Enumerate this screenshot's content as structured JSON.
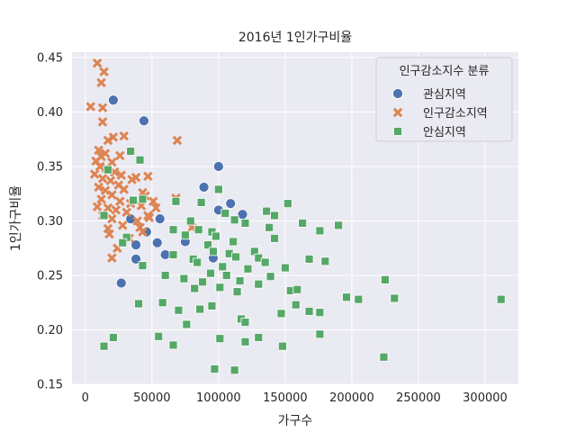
{
  "chart_data": {
    "type": "scatter",
    "title": "2016년 1인가구비율",
    "xlabel": "가구수",
    "ylabel": "1인가구비율",
    "xlim": [
      -10000,
      325000
    ],
    "ylim": [
      0.15,
      0.455
    ],
    "xticks": [
      0,
      50000,
      100000,
      150000,
      200000,
      250000,
      300000
    ],
    "yticks": [
      0.15,
      0.2,
      0.25,
      0.3,
      0.35,
      0.4,
      0.45
    ],
    "grid": true,
    "legend": {
      "title": "인구감소지수 분류",
      "position": "top-right"
    },
    "series": [
      {
        "name": "관심지역",
        "marker": "circle",
        "color": "#4c72b0",
        "points": [
          [
            21000,
            0.411
          ],
          [
            44000,
            0.392
          ],
          [
            100000,
            0.35
          ],
          [
            89000,
            0.331
          ],
          [
            109000,
            0.316
          ],
          [
            100000,
            0.31
          ],
          [
            118000,
            0.306
          ],
          [
            56000,
            0.302
          ],
          [
            34000,
            0.302
          ],
          [
            46000,
            0.29
          ],
          [
            54000,
            0.28
          ],
          [
            38000,
            0.278
          ],
          [
            75000,
            0.281
          ],
          [
            60000,
            0.269
          ],
          [
            38000,
            0.265
          ],
          [
            96000,
            0.266
          ],
          [
            27000,
            0.243
          ]
        ]
      },
      {
        "name": "인구감소지역",
        "marker": "x",
        "color": "#dd8452",
        "points": [
          [
            9000,
            0.445
          ],
          [
            14000,
            0.437
          ],
          [
            12000,
            0.427
          ],
          [
            4000,
            0.405
          ],
          [
            13000,
            0.404
          ],
          [
            13000,
            0.391
          ],
          [
            21000,
            0.377
          ],
          [
            29000,
            0.378
          ],
          [
            17000,
            0.374
          ],
          [
            69000,
            0.374
          ],
          [
            10000,
            0.365
          ],
          [
            15000,
            0.362
          ],
          [
            12000,
            0.359
          ],
          [
            8000,
            0.355
          ],
          [
            20000,
            0.354
          ],
          [
            26000,
            0.36
          ],
          [
            11000,
            0.35
          ],
          [
            16000,
            0.348
          ],
          [
            22000,
            0.345
          ],
          [
            7000,
            0.343
          ],
          [
            13000,
            0.339
          ],
          [
            19000,
            0.337
          ],
          [
            38000,
            0.34
          ],
          [
            47000,
            0.341
          ],
          [
            25000,
            0.333
          ],
          [
            10000,
            0.331
          ],
          [
            15000,
            0.328
          ],
          [
            29000,
            0.329
          ],
          [
            20000,
            0.324
          ],
          [
            43000,
            0.326
          ],
          [
            45000,
            0.323
          ],
          [
            12000,
            0.32
          ],
          [
            26000,
            0.318
          ],
          [
            34000,
            0.316
          ],
          [
            51000,
            0.318
          ],
          [
            68000,
            0.321
          ],
          [
            9000,
            0.313
          ],
          [
            17000,
            0.312
          ],
          [
            23000,
            0.31
          ],
          [
            31000,
            0.308
          ],
          [
            42000,
            0.314
          ],
          [
            53000,
            0.312
          ],
          [
            13000,
            0.305
          ],
          [
            20000,
            0.302
          ],
          [
            39000,
            0.3
          ],
          [
            47000,
            0.305
          ],
          [
            28000,
            0.296
          ],
          [
            17000,
            0.293
          ],
          [
            41000,
            0.294
          ],
          [
            80000,
            0.294
          ],
          [
            18000,
            0.288
          ],
          [
            43000,
            0.29
          ],
          [
            33000,
            0.284
          ],
          [
            24000,
            0.275
          ],
          [
            20000,
            0.266
          ],
          [
            48000,
            0.303
          ],
          [
            27000,
            0.342
          ],
          [
            35000,
            0.338
          ]
        ]
      },
      {
        "name": "안심지역",
        "marker": "square",
        "color": "#55a868",
        "points": [
          [
            34000,
            0.364
          ],
          [
            41000,
            0.356
          ],
          [
            17000,
            0.347
          ],
          [
            100000,
            0.329
          ],
          [
            152000,
            0.316
          ],
          [
            36000,
            0.319
          ],
          [
            68000,
            0.318
          ],
          [
            43000,
            0.32
          ],
          [
            87000,
            0.317
          ],
          [
            136000,
            0.309
          ],
          [
            105000,
            0.307
          ],
          [
            112000,
            0.301
          ],
          [
            142000,
            0.305
          ],
          [
            163000,
            0.298
          ],
          [
            190000,
            0.296
          ],
          [
            176000,
            0.291
          ],
          [
            14000,
            0.305
          ],
          [
            79000,
            0.3
          ],
          [
            120000,
            0.298
          ],
          [
            66000,
            0.292
          ],
          [
            85000,
            0.292
          ],
          [
            95000,
            0.29
          ],
          [
            138000,
            0.294
          ],
          [
            75000,
            0.287
          ],
          [
            98000,
            0.286
          ],
          [
            142000,
            0.284
          ],
          [
            31000,
            0.285
          ],
          [
            111000,
            0.281
          ],
          [
            92000,
            0.278
          ],
          [
            28000,
            0.28
          ],
          [
            96000,
            0.272
          ],
          [
            127000,
            0.272
          ],
          [
            108000,
            0.27
          ],
          [
            66000,
            0.269
          ],
          [
            81000,
            0.265
          ],
          [
            113000,
            0.267
          ],
          [
            130000,
            0.266
          ],
          [
            135000,
            0.262
          ],
          [
            168000,
            0.265
          ],
          [
            180000,
            0.263
          ],
          [
            43000,
            0.259
          ],
          [
            84000,
            0.262
          ],
          [
            103000,
            0.258
          ],
          [
            122000,
            0.256
          ],
          [
            150000,
            0.257
          ],
          [
            94000,
            0.252
          ],
          [
            106000,
            0.25
          ],
          [
            139000,
            0.249
          ],
          [
            225000,
            0.246
          ],
          [
            60000,
            0.25
          ],
          [
            74000,
            0.247
          ],
          [
            88000,
            0.244
          ],
          [
            116000,
            0.245
          ],
          [
            130000,
            0.242
          ],
          [
            82000,
            0.238
          ],
          [
            101000,
            0.239
          ],
          [
            114000,
            0.235
          ],
          [
            154000,
            0.236
          ],
          [
            159000,
            0.237
          ],
          [
            196000,
            0.23
          ],
          [
            205000,
            0.228
          ],
          [
            232000,
            0.229
          ],
          [
            312000,
            0.228
          ],
          [
            40000,
            0.224
          ],
          [
            58000,
            0.225
          ],
          [
            70000,
            0.218
          ],
          [
            86000,
            0.219
          ],
          [
            117000,
            0.21
          ],
          [
            147000,
            0.215
          ],
          [
            168000,
            0.217
          ],
          [
            176000,
            0.216
          ],
          [
            120000,
            0.207
          ],
          [
            158000,
            0.223
          ],
          [
            95000,
            0.222
          ],
          [
            130000,
            0.193
          ],
          [
            148000,
            0.185
          ],
          [
            176000,
            0.196
          ],
          [
            66000,
            0.186
          ],
          [
            76000,
            0.205
          ],
          [
            101000,
            0.192
          ],
          [
            120000,
            0.189
          ],
          [
            21000,
            0.193
          ],
          [
            55000,
            0.194
          ],
          [
            14000,
            0.185
          ],
          [
            97000,
            0.164
          ],
          [
            112000,
            0.163
          ],
          [
            224000,
            0.175
          ]
        ]
      }
    ]
  }
}
